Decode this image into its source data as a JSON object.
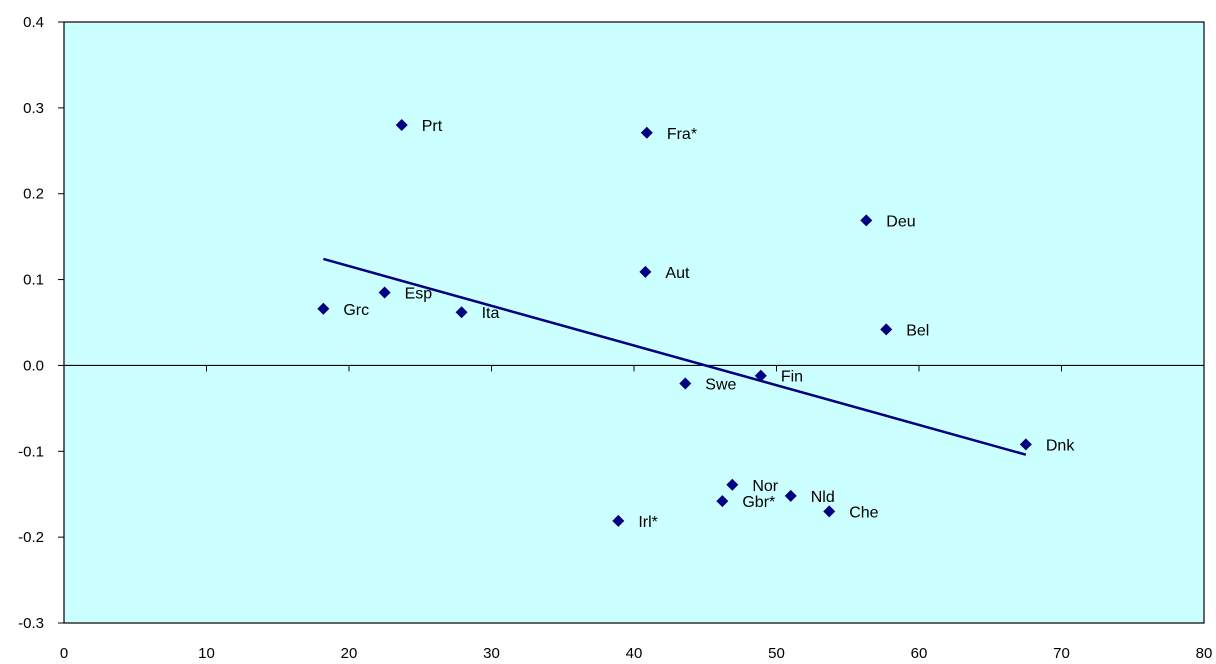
{
  "chart_data": {
    "type": "scatter",
    "title": "",
    "xlabel": "",
    "ylabel": "",
    "xlim": [
      0,
      80
    ],
    "ylim": [
      -0.3,
      0.4
    ],
    "x_ticks": [
      "0",
      "10",
      "20",
      "30",
      "40",
      "50",
      "60",
      "70",
      "80"
    ],
    "y_ticks": [
      "0.4",
      "0.3",
      "0.2",
      "0.1",
      "0.0",
      "-0.1",
      "-0.2",
      "-0.3"
    ],
    "grid": false,
    "legend": "none",
    "points": [
      {
        "label": "Prt",
        "x": 23.7,
        "y": 0.28
      },
      {
        "label": "Fra*",
        "x": 40.9,
        "y": 0.271
      },
      {
        "label": "Deu",
        "x": 56.3,
        "y": 0.169
      },
      {
        "label": "Aut",
        "x": 40.8,
        "y": 0.109
      },
      {
        "label": "Esp",
        "x": 22.5,
        "y": 0.085
      },
      {
        "label": "Grc",
        "x": 18.2,
        "y": 0.066
      },
      {
        "label": "Ita",
        "x": 27.9,
        "y": 0.062
      },
      {
        "label": "Bel",
        "x": 57.7,
        "y": 0.042
      },
      {
        "label": "Fin",
        "x": 48.9,
        "y": -0.012
      },
      {
        "label": "Swe",
        "x": 43.6,
        "y": -0.021
      },
      {
        "label": "Dnk",
        "x": 67.5,
        "y": -0.092
      },
      {
        "label": "Nor",
        "x": 46.9,
        "y": -0.139
      },
      {
        "label": "Nld",
        "x": 51.0,
        "y": -0.152
      },
      {
        "label": "Gbr*",
        "x": 46.2,
        "y": -0.158
      },
      {
        "label": "Che",
        "x": 53.7,
        "y": -0.17
      },
      {
        "label": "Irl*",
        "x": 38.9,
        "y": -0.181
      }
    ],
    "trendline": {
      "x": [
        18.2,
        67.5
      ],
      "y": [
        0.124,
        -0.104
      ]
    },
    "colors": {
      "plot_background": "#ccffff",
      "marker": "#000080",
      "trendline": "#000080",
      "axis": "#000000"
    }
  }
}
